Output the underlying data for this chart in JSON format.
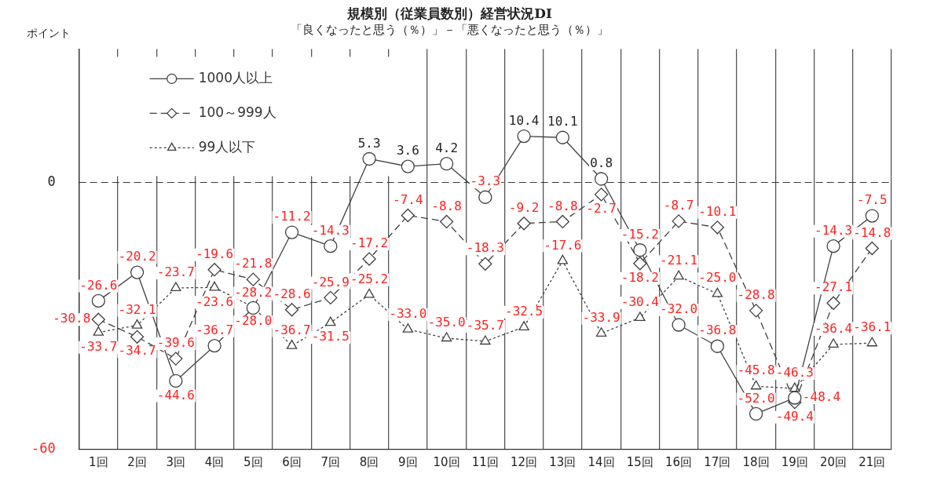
{
  "chart_data": {
    "type": "line",
    "title": "規模別（従業員数別）経営状況DI",
    "subtitle": "「良くなったと思う（％）」－「悪くなったと思う（％）」",
    "ylabel": "ポイント",
    "categories": [
      "1回",
      "2回",
      "3回",
      "4回",
      "5回",
      "6回",
      "7回",
      "8回",
      "9回",
      "10回",
      "11回",
      "12回",
      "13回",
      "14回",
      "15回",
      "16回",
      "17回",
      "18回",
      "19回",
      "20回",
      "21回"
    ],
    "ylim": [
      -60,
      30
    ],
    "yticks": [
      0,
      -60
    ],
    "grid": "x",
    "legend": "top left",
    "ref_lines": [
      {
        "axis": "y",
        "value": 0,
        "line_style": "dashed"
      }
    ],
    "series": [
      {
        "name": "1000人以上",
        "color": "#404040",
        "marker": "circle",
        "line_style": "solid",
        "values": [
          -26.6,
          -20.2,
          -44.6,
          -36.7,
          -28.2,
          -11.2,
          -14.3,
          5.3,
          3.6,
          4.2,
          -3.3,
          10.4,
          10.1,
          0.8,
          -15.2,
          -32.0,
          -36.8,
          -52.0,
          -48.4,
          -14.3,
          -7.5
        ],
        "value_labels": [
          "-26.6",
          "-20.2",
          "-44.6",
          "-36.7",
          "-28.2",
          "-11.2",
          "-14.3",
          "5.3",
          "3.6",
          "4.2",
          "-3.3",
          "10.4",
          "10.1",
          "0.8",
          "-15.2",
          "-32.0",
          "-36.8",
          "-52.0",
          "-48.4",
          "-14.3",
          "-7.5"
        ]
      },
      {
        "name": "100～999人",
        "color": "#404040",
        "marker": "diamond",
        "line_style": "dashed",
        "values": [
          -30.8,
          -34.7,
          -39.6,
          -19.6,
          -21.8,
          -28.6,
          -25.9,
          -17.2,
          -7.4,
          -8.8,
          -18.3,
          -9.2,
          -8.8,
          -2.7,
          -18.2,
          -8.7,
          -10.1,
          -28.8,
          -49.4,
          -27.1,
          -14.8
        ],
        "value_labels": [
          "-30.8",
          "-34.7",
          "-39.6",
          "-19.6",
          "-21.8",
          "-28.6",
          "-25.9",
          "-17.2",
          "-7.4",
          "-8.8",
          "-18.3",
          "-9.2",
          "-8.8",
          "-2.7",
          "-18.2",
          "-8.7",
          "-10.1",
          "-28.8",
          "-49.4",
          "-27.1",
          "-14.8"
        ]
      },
      {
        "name": "99人以下",
        "color": "#404040",
        "marker": "triangle",
        "line_style": "dotted",
        "values": [
          -33.7,
          -32.1,
          -23.7,
          -23.6,
          -28.0,
          -36.7,
          -31.5,
          -25.2,
          -33.0,
          -35.0,
          -35.7,
          -32.5,
          -17.6,
          -33.9,
          -30.4,
          -21.1,
          -25.0,
          -45.8,
          -46.3,
          -36.4,
          -36.1
        ],
        "value_labels": [
          "-33.7",
          "-32.1",
          "-23.7",
          "-23.6",
          "-28.0",
          "-36.7",
          "-31.5",
          "-25.2",
          "-33.0",
          "-35.0",
          "-35.7",
          "-32.5",
          "-17.6",
          "-33.9",
          "-30.4",
          "-21.1",
          "-25.0",
          "-45.8",
          "-46.3",
          "-36.4",
          "-36.1"
        ]
      }
    ]
  }
}
